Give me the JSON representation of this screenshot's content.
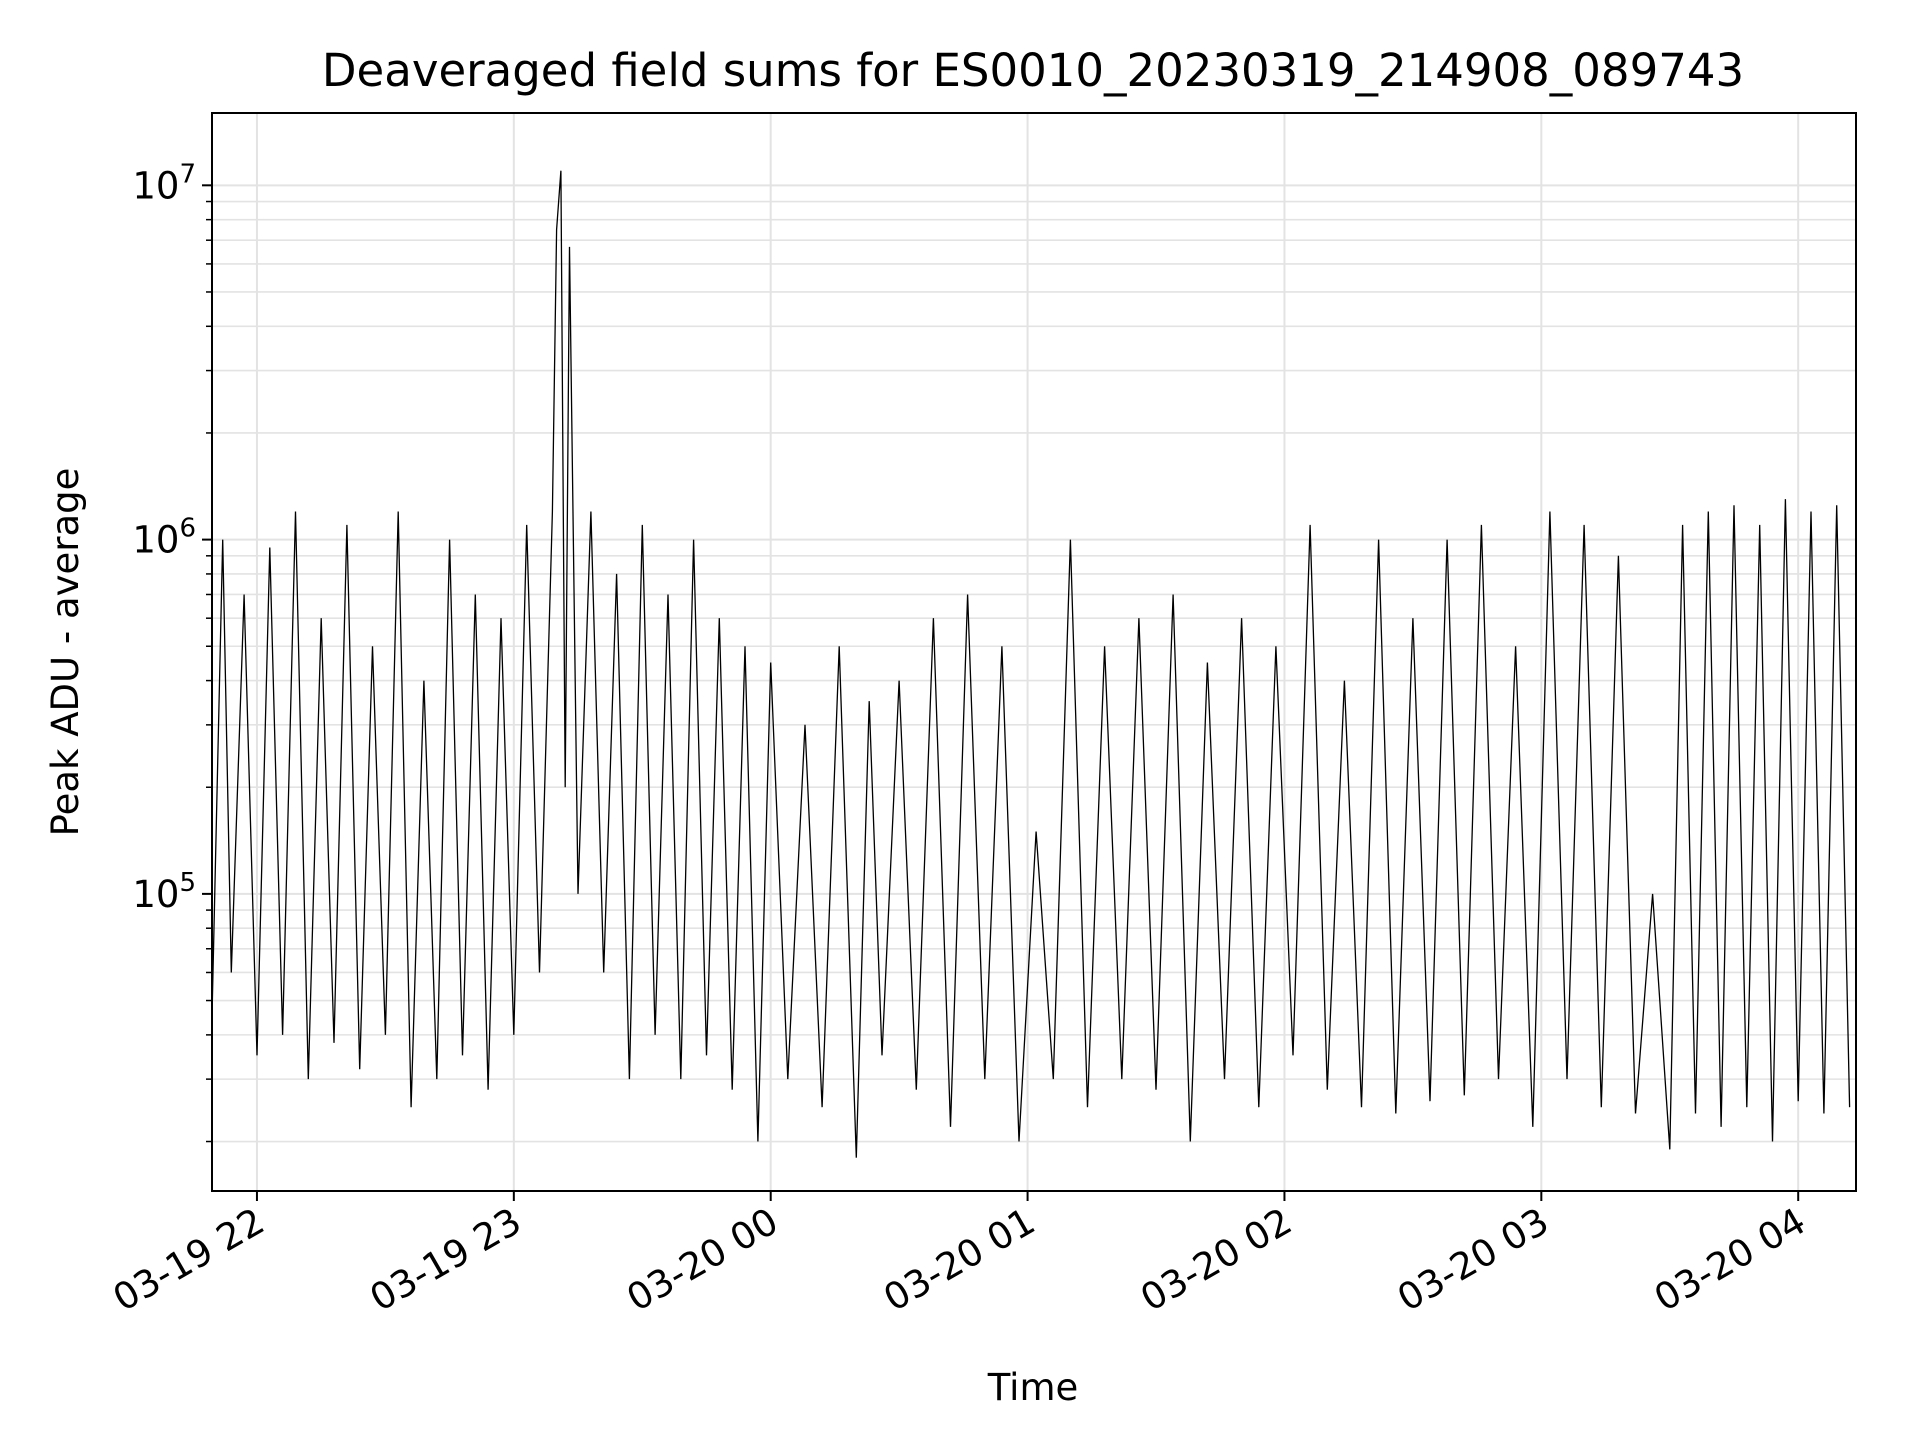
{
  "chart_data": {
    "type": "line",
    "title": "Deaveraged field sums for ES0010_20230319_214908_089743",
    "xlabel": "Time",
    "ylabel": "Peak ADU - average",
    "yscale": "log",
    "ylim": [
      14500,
      16000000
    ],
    "xlim": [
      "03-19 21:49:30",
      "03-20 04:13:30"
    ],
    "grid": true,
    "x_ticks": [
      {
        "label": "03-19 22",
        "time": "03-19 22:00"
      },
      {
        "label": "03-19 23",
        "time": "03-19 23:00"
      },
      {
        "label": "03-20 00",
        "time": "03-20 00:00"
      },
      {
        "label": "03-20 01",
        "time": "03-20 01:00"
      },
      {
        "label": "03-20 02",
        "time": "03-20 02:00"
      },
      {
        "label": "03-20 03",
        "time": "03-20 03:00"
      },
      {
        "label": "03-20 04",
        "time": "03-20 04:00"
      }
    ],
    "y_ticks": [
      {
        "base": "10",
        "exp": "5",
        "value": 100000
      },
      {
        "base": "10",
        "exp": "6",
        "value": 1000000
      },
      {
        "base": "10",
        "exp": "7",
        "value": 10000000
      }
    ],
    "series": [
      {
        "color": "#000000",
        "x": [
          "03-19 21:49:30",
          "03-19 21:52:00",
          "03-19 21:54:00",
          "03-19 21:57:00",
          "03-19 22:00:00",
          "03-19 22:03:00",
          "03-19 22:06:00",
          "03-19 22:09:00",
          "03-19 22:12:00",
          "03-19 22:15:00",
          "03-19 22:18:00",
          "03-19 22:21:00",
          "03-19 22:24:00",
          "03-19 22:27:00",
          "03-19 22:30:00",
          "03-19 22:33:00",
          "03-19 22:36:00",
          "03-19 22:39:00",
          "03-19 22:42:00",
          "03-19 22:45:00",
          "03-19 22:48:00",
          "03-19 22:51:00",
          "03-19 22:54:00",
          "03-19 22:57:00",
          "03-19 23:00:00",
          "03-19 23:03:00",
          "03-19 23:06:00",
          "03-19 23:09:00",
          "03-19 23:10:00",
          "03-19 23:11:00",
          "03-19 23:12:00",
          "03-19 23:13:00",
          "03-19 23:15:00",
          "03-19 23:18:00",
          "03-19 23:21:00",
          "03-19 23:24:00",
          "03-19 23:27:00",
          "03-19 23:30:00",
          "03-19 23:33:00",
          "03-19 23:36:00",
          "03-19 23:39:00",
          "03-19 23:42:00",
          "03-19 23:45:00",
          "03-19 23:48:00",
          "03-19 23:51:00",
          "03-19 23:54:00",
          "03-19 23:57:00",
          "03-20 00:00:00",
          "03-20 00:04:00",
          "03-20 00:08:00",
          "03-20 00:12:00",
          "03-20 00:16:00",
          "03-20 00:20:00",
          "03-20 00:23:00",
          "03-20 00:26:00",
          "03-20 00:30:00",
          "03-20 00:34:00",
          "03-20 00:38:00",
          "03-20 00:42:00",
          "03-20 00:46:00",
          "03-20 00:50:00",
          "03-20 00:54:00",
          "03-20 00:58:00",
          "03-20 01:02:00",
          "03-20 01:06:00",
          "03-20 01:10:00",
          "03-20 01:14:00",
          "03-20 01:18:00",
          "03-20 01:22:00",
          "03-20 01:26:00",
          "03-20 01:30:00",
          "03-20 01:34:00",
          "03-20 01:38:00",
          "03-20 01:42:00",
          "03-20 01:46:00",
          "03-20 01:50:00",
          "03-20 01:54:00",
          "03-20 01:58:00",
          "03-20 02:02:00",
          "03-20 02:06:00",
          "03-20 02:10:00",
          "03-20 02:14:00",
          "03-20 02:18:00",
          "03-20 02:22:00",
          "03-20 02:26:00",
          "03-20 02:30:00",
          "03-20 02:34:00",
          "03-20 02:38:00",
          "03-20 02:42:00",
          "03-20 02:46:00",
          "03-20 02:50:00",
          "03-20 02:54:00",
          "03-20 02:58:00",
          "03-20 03:02:00",
          "03-20 03:06:00",
          "03-20 03:10:00",
          "03-20 03:14:00",
          "03-20 03:18:00",
          "03-20 03:22:00",
          "03-20 03:26:00",
          "03-20 03:30:00",
          "03-20 03:33:00",
          "03-20 03:36:00",
          "03-20 03:39:00",
          "03-20 03:42:00",
          "03-20 03:45:00",
          "03-20 03:48:00",
          "03-20 03:51:00",
          "03-20 03:54:00",
          "03-20 03:57:00",
          "03-20 04:00:00",
          "03-20 04:03:00",
          "03-20 04:06:00",
          "03-20 04:09:00",
          "03-20 04:12:00"
        ],
        "y": [
          45000,
          1000000,
          60000,
          700000,
          35000,
          950000,
          40000,
          1200000,
          30000,
          600000,
          38000,
          1100000,
          32000,
          500000,
          40000,
          1200000,
          25000,
          400000,
          30000,
          1000000,
          35000,
          700000,
          28000,
          600000,
          40000,
          1100000,
          60000,
          1200000,
          7500000,
          11000000,
          200000,
          6700000,
          100000,
          1200000,
          60000,
          800000,
          30000,
          1100000,
          40000,
          700000,
          30000,
          1000000,
          35000,
          600000,
          28000,
          500000,
          20000,
          450000,
          30000,
          300000,
          25000,
          500000,
          18000,
          350000,
          35000,
          400000,
          28000,
          600000,
          22000,
          700000,
          30000,
          500000,
          20000,
          150000,
          30000,
          1000000,
          25000,
          500000,
          30000,
          600000,
          28000,
          700000,
          20000,
          450000,
          30000,
          600000,
          25000,
          500000,
          35000,
          1100000,
          28000,
          400000,
          25000,
          1000000,
          24000,
          600000,
          26000,
          1000000,
          27000,
          1100000,
          30000,
          500000,
          22000,
          1200000,
          30000,
          1100000,
          25000,
          900000,
          24000,
          100000,
          19000,
          1100000,
          24000,
          1200000,
          22000,
          1250000,
          25000,
          1100000,
          20000,
          1300000,
          26000,
          1200000,
          24000,
          1250000,
          25000
        ]
      }
    ]
  }
}
